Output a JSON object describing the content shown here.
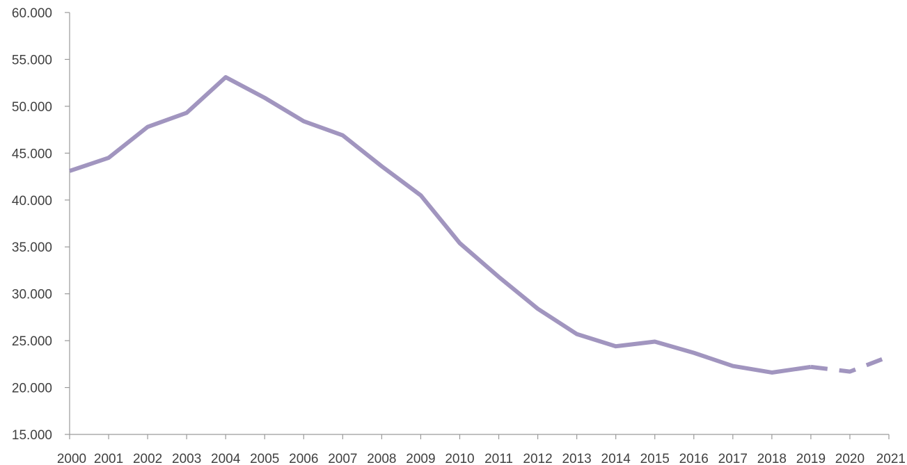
{
  "chart_data": {
    "type": "line",
    "x": [
      "2000",
      "2001",
      "2002",
      "2003",
      "2004",
      "2005",
      "2006",
      "2007",
      "2008",
      "2009",
      "2010",
      "2011",
      "2012",
      "2013",
      "2014",
      "2015",
      "2016",
      "2017",
      "2018",
      "2019",
      "2020",
      "2021"
    ],
    "series": [
      {
        "color": "#a195bf",
        "values": [
          43100,
          44500,
          47800,
          49300,
          53100,
          50900,
          48400,
          46900,
          43600,
          40500,
          35400,
          31800,
          28400,
          25700,
          24400,
          24900,
          23700,
          22300,
          21600,
          22200,
          21700,
          23300
        ],
        "solid_through": "2019",
        "dashed_from": "2019"
      }
    ],
    "ylim": [
      15000,
      60000
    ],
    "yticks": [
      15000,
      20000,
      25000,
      30000,
      35000,
      40000,
      45000,
      50000,
      55000,
      60000
    ],
    "ytick_labels": [
      "15.000",
      "20.000",
      "25.000",
      "30.000",
      "35.000",
      "40.000",
      "45.000",
      "50.000",
      "55.000",
      "60.000"
    ],
    "xtick_labels": [
      "2000",
      "2001",
      "2002",
      "2003",
      "2004",
      "2005",
      "2006",
      "2007",
      "2008",
      "2009",
      "2010",
      "2011",
      "2012",
      "2013",
      "2014",
      "2015",
      "2016",
      "2017",
      "2018",
      "2019",
      "2020",
      "2021"
    ],
    "title": "",
    "xlabel": "",
    "ylabel": "",
    "grid": false,
    "legend": "none"
  }
}
